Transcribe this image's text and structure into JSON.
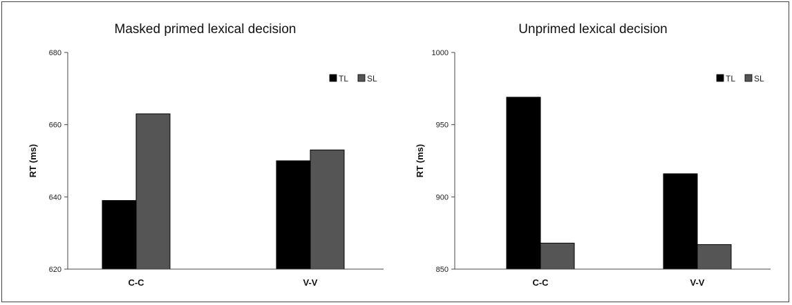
{
  "chart_data": [
    {
      "type": "bar",
      "title": "Masked primed lexical decision",
      "ylabel": "RT (ms)",
      "xlabel": "",
      "categories": [
        "C-C",
        "V-V"
      ],
      "ylim": [
        620,
        680
      ],
      "yticks": [
        620,
        640,
        660,
        680
      ],
      "grid": false,
      "legend": "top-right",
      "series": [
        {
          "name": "TL",
          "color": "#000000",
          "values": [
            639,
            650
          ]
        },
        {
          "name": "SL",
          "color": "#555555",
          "values": [
            663,
            653
          ]
        }
      ]
    },
    {
      "type": "bar",
      "title": "Unprimed lexical decision",
      "ylabel": "RT (ms)",
      "xlabel": "",
      "categories": [
        "C-C",
        "V-V"
      ],
      "ylim": [
        850,
        1000
      ],
      "yticks": [
        850,
        900,
        950,
        1000
      ],
      "grid": false,
      "legend": "top-right",
      "series": [
        {
          "name": "TL",
          "color": "#000000",
          "values": [
            969,
            916
          ]
        },
        {
          "name": "SL",
          "color": "#555555",
          "values": [
            868,
            867
          ]
        }
      ]
    }
  ]
}
